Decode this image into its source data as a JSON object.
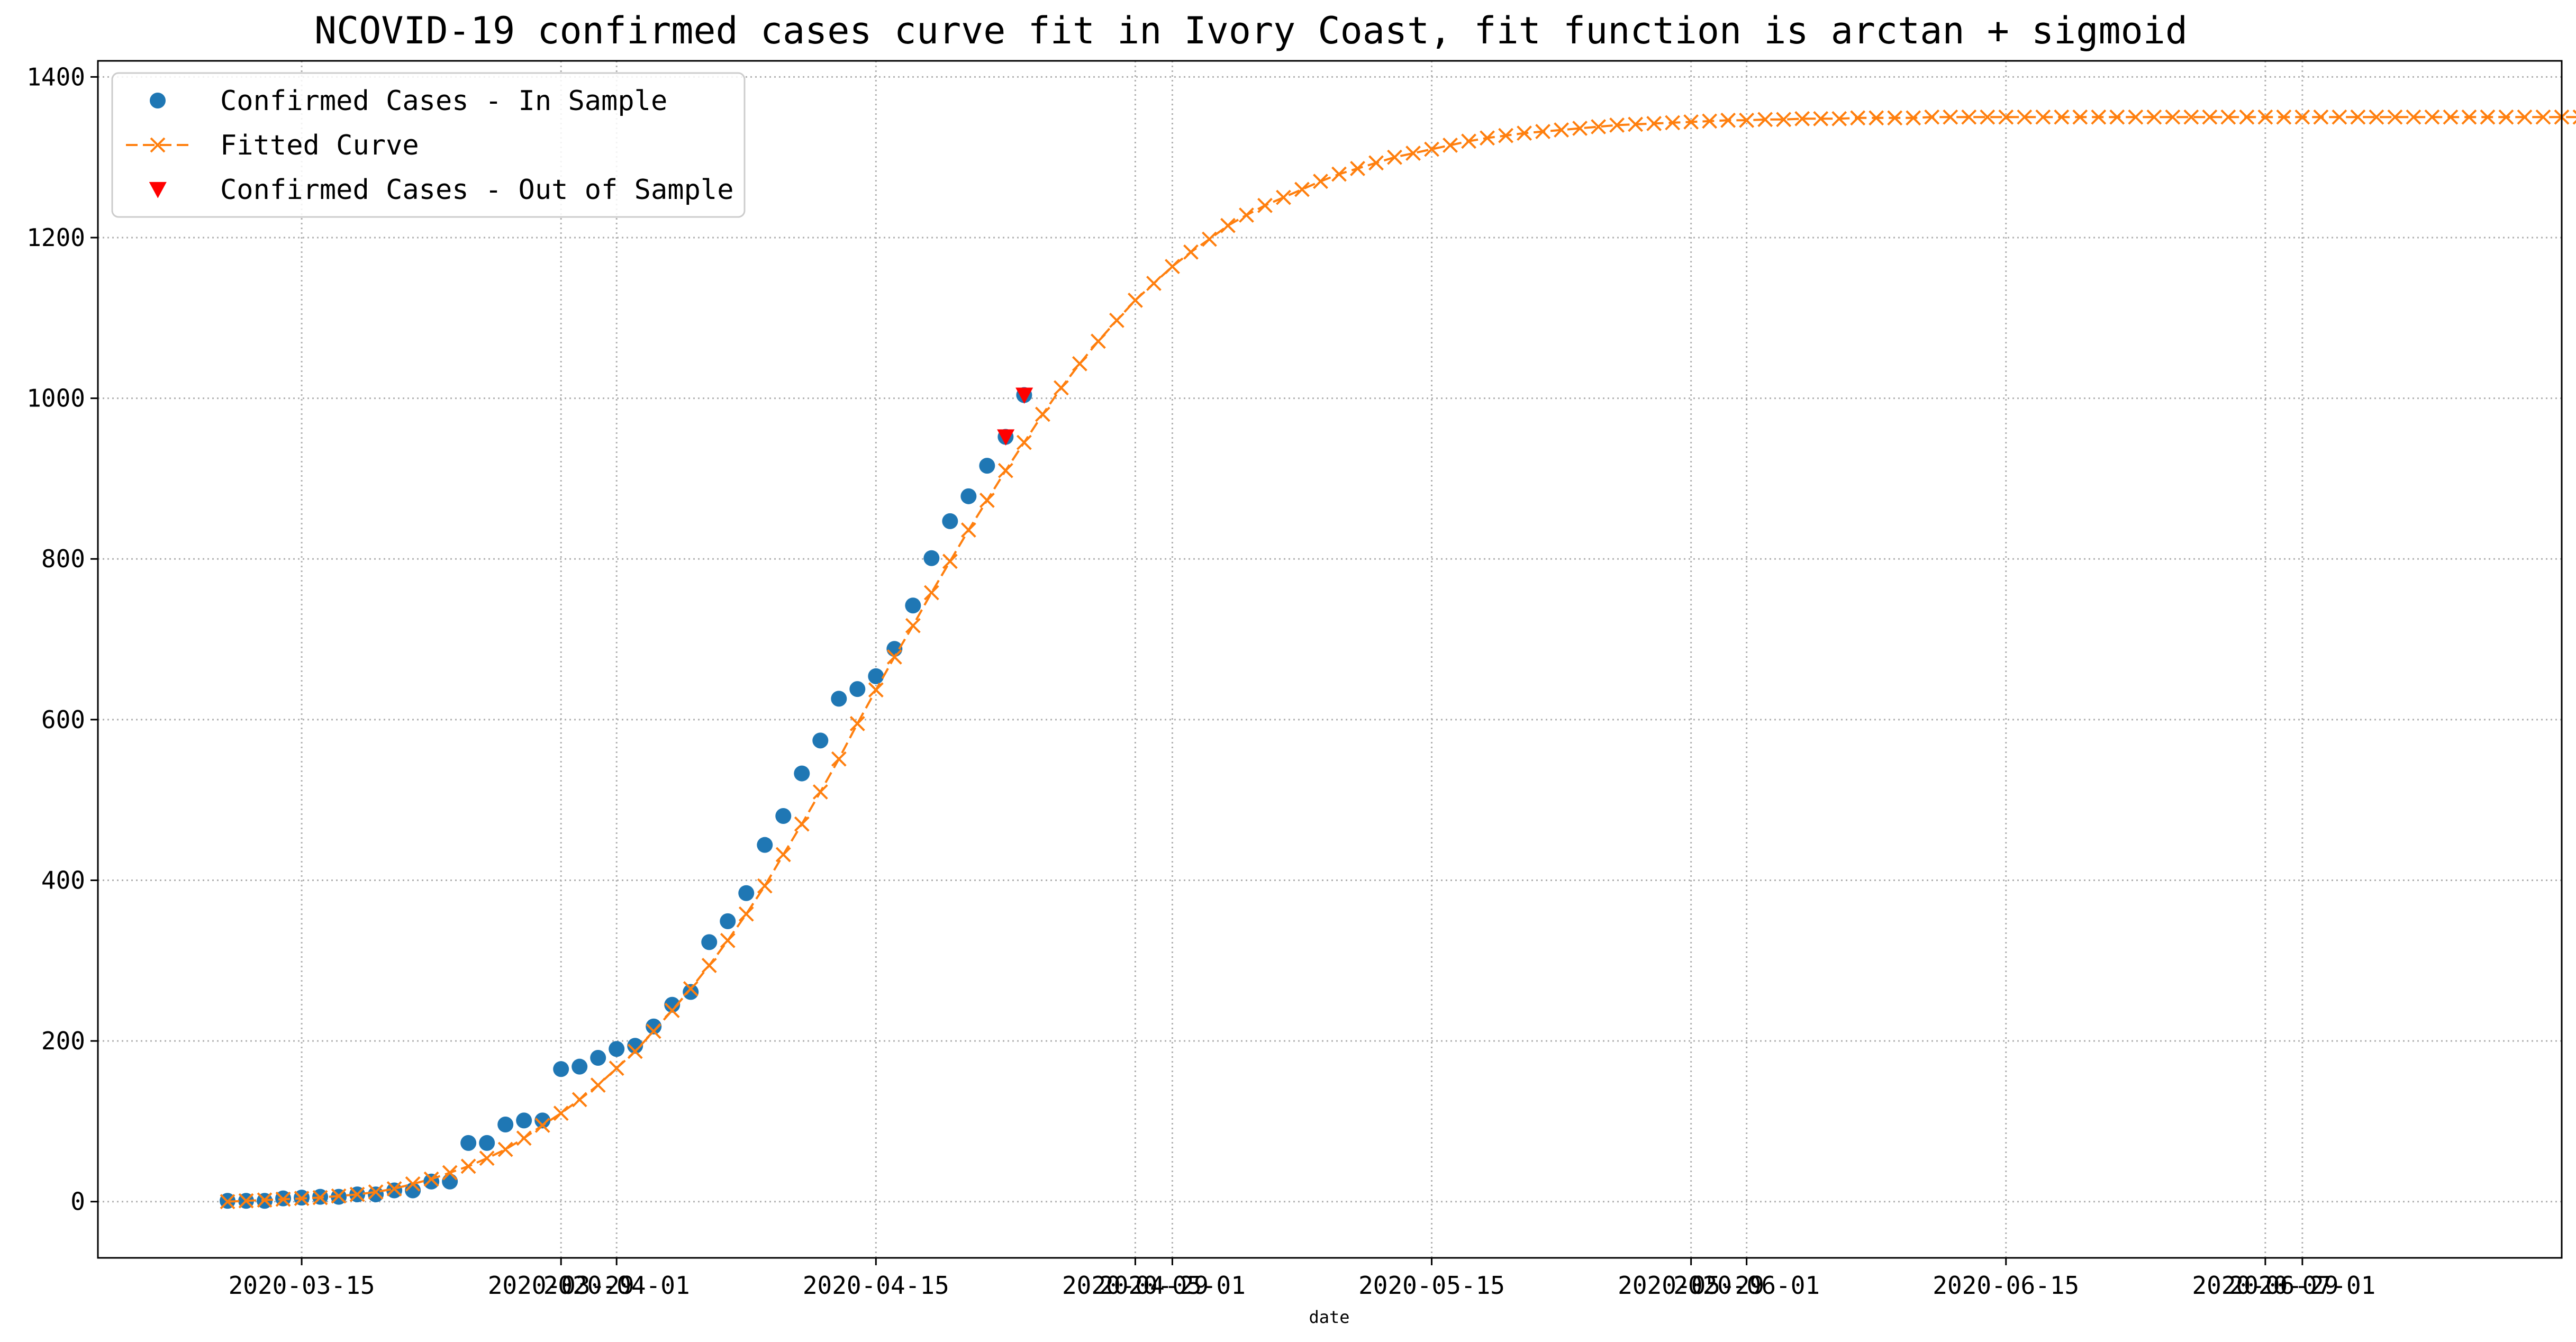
{
  "chart_data": {
    "type": "line",
    "title": "NCOVID-19 confirmed cases curve fit in Ivory Coast, fit function is arctan + sigmoid",
    "xlabel": "date",
    "ylabel": "",
    "x_type": "date",
    "xlim": [
      "2020-03-04",
      "2020-07-15"
    ],
    "ylim": [
      -70,
      1420
    ],
    "yticks": [
      0,
      200,
      400,
      600,
      800,
      1000,
      1200,
      1400
    ],
    "xticks": [
      "2020-03-15",
      "2020-03-29",
      "2020-04-01",
      "2020-04-15",
      "2020-04-29",
      "2020-05-01",
      "2020-05-15",
      "2020-05-29",
      "2020-06-01",
      "2020-06-15",
      "2020-06-29",
      "2020-07-01"
    ],
    "xtick_labels": [
      "2020-03-15",
      "2020-03-29",
      "2020-04-01",
      "2020-04-15",
      "2020-04-29",
      "2020-05-01",
      "2020-05-15",
      "2020-05-29",
      "2020-06-01",
      "2020-06-15",
      "2020-06-29",
      "2020-07-01"
    ],
    "grid": true,
    "legend_position": "top-left",
    "series": [
      {
        "name": "Confirmed Cases - In Sample",
        "style": "markers",
        "marker": "circle",
        "color": "#1f77b4",
        "x": [
          "2020-03-11",
          "2020-03-12",
          "2020-03-13",
          "2020-03-14",
          "2020-03-15",
          "2020-03-16",
          "2020-03-17",
          "2020-03-18",
          "2020-03-19",
          "2020-03-20",
          "2020-03-21",
          "2020-03-22",
          "2020-03-23",
          "2020-03-24",
          "2020-03-25",
          "2020-03-26",
          "2020-03-27",
          "2020-03-28",
          "2020-03-29",
          "2020-03-30",
          "2020-03-31",
          "2020-04-01",
          "2020-04-02",
          "2020-04-03",
          "2020-04-04",
          "2020-04-05",
          "2020-04-06",
          "2020-04-07",
          "2020-04-08",
          "2020-04-09",
          "2020-04-10",
          "2020-04-11",
          "2020-04-12",
          "2020-04-13",
          "2020-04-14",
          "2020-04-15",
          "2020-04-16",
          "2020-04-17",
          "2020-04-18",
          "2020-04-19",
          "2020-04-20",
          "2020-04-21",
          "2020-04-22",
          "2020-04-23"
        ],
        "y": [
          1,
          1,
          1,
          4,
          5,
          6,
          6,
          9,
          9,
          14,
          14,
          25,
          25,
          73,
          73,
          96,
          101,
          101,
          165,
          168,
          179,
          190,
          194,
          218,
          245,
          261,
          323,
          349,
          384,
          444,
          480,
          533,
          574,
          626,
          638,
          654,
          688,
          742,
          801,
          847,
          878,
          916,
          952,
          1004
        ]
      },
      {
        "name": "Fitted Curve",
        "style": "dashed-line-x-markers",
        "marker": "x",
        "color": "#ff7f0e",
        "x_start": "2020-03-11",
        "x_step_days": 1,
        "y": [
          0,
          1,
          2,
          3,
          4,
          5,
          7,
          9,
          12,
          16,
          22,
          28,
          36,
          44,
          54,
          65,
          79,
          95,
          110,
          127,
          145,
          166,
          187,
          212,
          238,
          265,
          294,
          325,
          358,
          393,
          432,
          470,
          510,
          551,
          595,
          637,
          678,
          717,
          758,
          797,
          836,
          873,
          910,
          945,
          980,
          1013,
          1043,
          1071,
          1097,
          1122,
          1143,
          1164,
          1182,
          1198,
          1215,
          1228,
          1240,
          1250,
          1260,
          1270,
          1279,
          1286,
          1293,
          1300,
          1305,
          1310,
          1315,
          1320,
          1324,
          1327,
          1330,
          1332,
          1334,
          1336,
          1338,
          1340,
          1341,
          1342,
          1343,
          1344,
          1345,
          1346,
          1346,
          1347,
          1347,
          1348,
          1348,
          1348,
          1349,
          1349,
          1349,
          1349,
          1350,
          1350,
          1350,
          1350,
          1350,
          1350,
          1350,
          1350,
          1350,
          1350,
          1350,
          1350,
          1350,
          1350,
          1350,
          1350,
          1350,
          1350,
          1350,
          1350,
          1350,
          1350,
          1350,
          1350,
          1350,
          1350,
          1350,
          1350,
          1350,
          1350,
          1350,
          1350,
          1350,
          1350,
          1350,
          1350,
          1350
        ]
      },
      {
        "name": "Confirmed Cases - Out of Sample",
        "style": "markers",
        "marker": "triangle-down",
        "color": "#ff0000",
        "x": [
          "2020-04-22",
          "2020-04-23"
        ],
        "y": [
          952,
          1004
        ]
      }
    ]
  }
}
